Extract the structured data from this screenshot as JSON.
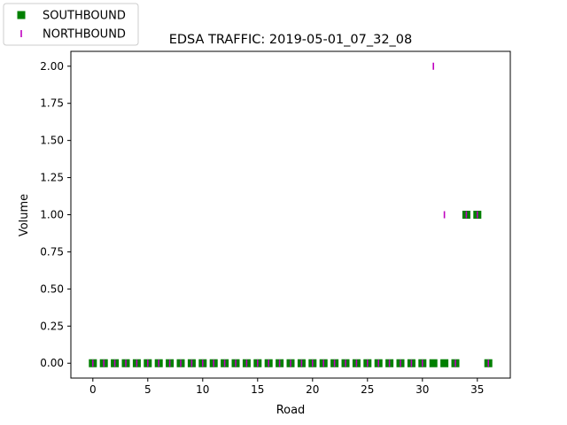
{
  "chart_data": {
    "type": "scatter",
    "title": "EDSA TRAFFIC: 2019-05-01_07_32_08",
    "xlabel": "Road",
    "ylabel": "Volume",
    "xlim": [
      -2,
      38
    ],
    "ylim": [
      -0.1,
      2.1
    ],
    "xticks": [
      0,
      5,
      10,
      15,
      20,
      25,
      30,
      35
    ],
    "yticks": [
      0.0,
      0.25,
      0.5,
      0.75,
      1.0,
      1.25,
      1.5,
      1.75,
      2.0
    ],
    "grid": false,
    "legend_position": "top-left, outside plot",
    "series": [
      {
        "name": "SOUTHBOUND",
        "marker": "square",
        "color": "#008000",
        "x": [
          0,
          1,
          2,
          3,
          4,
          5,
          6,
          7,
          8,
          9,
          10,
          11,
          12,
          13,
          14,
          15,
          16,
          17,
          18,
          19,
          20,
          21,
          22,
          23,
          24,
          25,
          26,
          27,
          28,
          29,
          30,
          31,
          32,
          33,
          34,
          35,
          36
        ],
        "y": [
          0,
          0,
          0,
          0,
          0,
          0,
          0,
          0,
          0,
          0,
          0,
          0,
          0,
          0,
          0,
          0,
          0,
          0,
          0,
          0,
          0,
          0,
          0,
          0,
          0,
          0,
          0,
          0,
          0,
          0,
          0,
          0,
          0,
          0,
          1,
          1,
          0
        ]
      },
      {
        "name": "NORTHBOUND",
        "marker": "vline",
        "color": "#bf00bf",
        "x": [
          0,
          1,
          2,
          3,
          4,
          5,
          6,
          7,
          8,
          9,
          10,
          11,
          12,
          13,
          14,
          15,
          16,
          17,
          18,
          19,
          20,
          21,
          22,
          23,
          24,
          25,
          26,
          27,
          28,
          29,
          30,
          31,
          32,
          33,
          34,
          35,
          36
        ],
        "y": [
          0,
          0,
          0,
          0,
          0,
          0,
          0,
          0,
          0,
          0,
          0,
          0,
          0,
          0,
          0,
          0,
          0,
          0,
          0,
          0,
          0,
          0,
          0,
          0,
          0,
          0,
          0,
          0,
          0,
          0,
          0,
          2,
          1,
          0,
          1,
          1,
          0
        ]
      }
    ]
  }
}
